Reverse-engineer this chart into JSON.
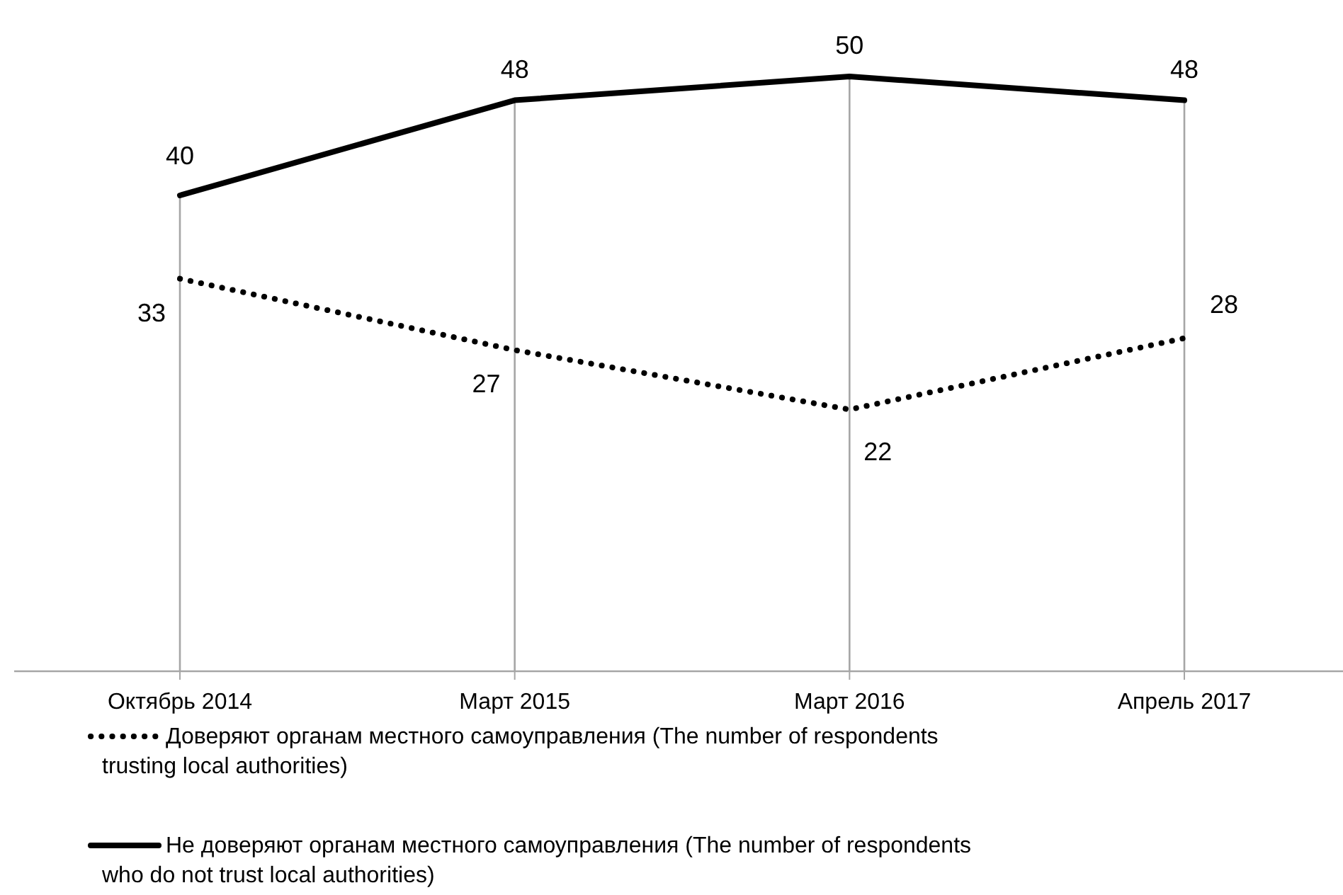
{
  "chart_data": {
    "type": "line",
    "categories": [
      "Октябрь 2014",
      "Март 2015",
      "Март 2016",
      "Апрель 2017"
    ],
    "series": [
      {
        "name": "Доверяют органам местного самоуправления (The number of respondents trusting local authorities)",
        "color": "#000000",
        "line_style": "dotted",
        "values": [
          33,
          27,
          22,
          28
        ]
      },
      {
        "name": "Не доверяют органам местного самоуправления (The number of respondents who do not trust local authorities)",
        "color": "#000000",
        "line_style": "solid",
        "values": [
          40,
          48,
          50,
          48
        ]
      }
    ],
    "data_labels": true,
    "legend": "bottom",
    "grid": "x"
  }
}
